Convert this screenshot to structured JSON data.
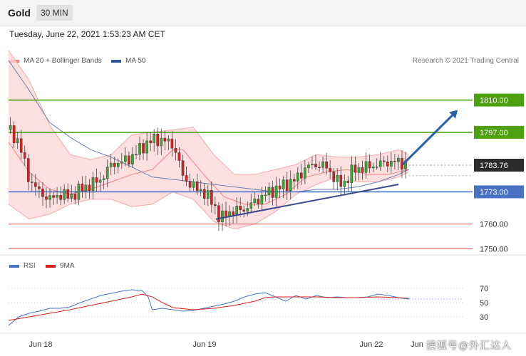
{
  "header": {
    "title": "Gold",
    "interval": "30 MIN"
  },
  "timestamp": "Tuesday, June 22, 2021 1:53:23 AM CET",
  "legend": {
    "bollinger": {
      "label": "MA 20 + Bollinger Bands",
      "color": "#f08080"
    },
    "ma50": {
      "label": "MA 50",
      "color": "#2f5597"
    },
    "credit": "Research © 2021 Trading Central"
  },
  "rsi_legend": {
    "rsi": {
      "label": "RSI",
      "color": "#4a72c4"
    },
    "ma9": {
      "label": "9MA",
      "color": "#d62020"
    }
  },
  "watermark": "搜狐号@外汇达人",
  "chart_data": [
    {
      "type": "line",
      "subtype": "candlestick",
      "x_ticks": [
        "Jun 18",
        "Jun 19",
        "Jun 22",
        "Jun"
      ],
      "y_ticks": [
        "1810.00",
        "1797.00",
        "1783.76",
        "1773.00",
        "1760.00",
        "1750.00"
      ],
      "ylim": [
        1747,
        1836
      ],
      "current_price": 1783.76,
      "levels": [
        {
          "value": 1810.0,
          "label": "1810.00",
          "color": "#4ea10e",
          "kind": "resistance"
        },
        {
          "value": 1797.0,
          "label": "1797.00",
          "color": "#4ea10e",
          "kind": "resistance"
        },
        {
          "value": 1773.0,
          "label": "1773.00",
          "color": "#4a72c4",
          "kind": "pivot"
        },
        {
          "value": 1760.0,
          "label": "1760.00",
          "color": "#e06060",
          "kind": "support"
        },
        {
          "value": 1750.0,
          "label": "1750.00",
          "color": "#e06060",
          "kind": "support"
        }
      ],
      "trendline": {
        "from": [
          101,
          1762
        ],
        "to": [
          190,
          1776
        ]
      },
      "arrow": {
        "from": [
          192,
          1784
        ],
        "to": [
          216,
          1806
        ]
      },
      "ma20": [
        [
          0,
          1793
        ],
        [
          10,
          1781
        ],
        [
          20,
          1774
        ],
        [
          30,
          1772
        ],
        [
          40,
          1774
        ],
        [
          50,
          1777
        ],
        [
          60,
          1780
        ],
        [
          70,
          1782
        ],
        [
          80,
          1790
        ],
        [
          85,
          1790
        ],
        [
          95,
          1780
        ],
        [
          105,
          1771
        ],
        [
          115,
          1768
        ],
        [
          125,
          1768
        ],
        [
          135,
          1772
        ],
        [
          145,
          1779
        ],
        [
          155,
          1781
        ],
        [
          165,
          1782
        ],
        [
          175,
          1780
        ],
        [
          185,
          1780
        ],
        [
          195,
          1782
        ]
      ],
      "bb_upper": [
        [
          0,
          1830
        ],
        [
          10,
          1818
        ],
        [
          20,
          1800
        ],
        [
          30,
          1788
        ],
        [
          40,
          1786
        ],
        [
          50,
          1788
        ],
        [
          60,
          1796
        ],
        [
          70,
          1797
        ],
        [
          80,
          1798
        ],
        [
          90,
          1799
        ],
        [
          100,
          1788
        ],
        [
          110,
          1780
        ],
        [
          120,
          1780
        ],
        [
          130,
          1782
        ],
        [
          140,
          1784
        ],
        [
          150,
          1788
        ],
        [
          160,
          1787
        ],
        [
          170,
          1787
        ],
        [
          180,
          1788
        ],
        [
          190,
          1790
        ],
        [
          195,
          1788
        ]
      ],
      "bb_lower": [
        [
          0,
          1768
        ],
        [
          10,
          1762
        ],
        [
          20,
          1764
        ],
        [
          30,
          1768
        ],
        [
          40,
          1770
        ],
        [
          50,
          1770
        ],
        [
          60,
          1767
        ],
        [
          70,
          1768
        ],
        [
          80,
          1773
        ],
        [
          90,
          1770
        ],
        [
          100,
          1761
        ],
        [
          110,
          1758
        ],
        [
          120,
          1760
        ],
        [
          130,
          1765
        ],
        [
          140,
          1772
        ],
        [
          150,
          1776
        ],
        [
          160,
          1779
        ],
        [
          170,
          1777
        ],
        [
          180,
          1777
        ],
        [
          190,
          1779
        ],
        [
          195,
          1781
        ]
      ],
      "ma50": [
        [
          0,
          1826
        ],
        [
          10,
          1814
        ],
        [
          20,
          1801
        ],
        [
          30,
          1795
        ],
        [
          40,
          1790
        ],
        [
          50,
          1787
        ],
        [
          60,
          1783
        ],
        [
          70,
          1779
        ],
        [
          80,
          1778
        ],
        [
          90,
          1777
        ],
        [
          100,
          1776
        ],
        [
          110,
          1775
        ],
        [
          120,
          1774
        ],
        [
          130,
          1773
        ],
        [
          140,
          1773
        ],
        [
          150,
          1774
        ],
        [
          160,
          1774
        ],
        [
          170,
          1775
        ],
        [
          180,
          1777
        ],
        [
          190,
          1780
        ],
        [
          195,
          1782
        ]
      ],
      "close": [
        [
          0,
          1798
        ],
        [
          5,
          1793
        ],
        [
          10,
          1778
        ],
        [
          15,
          1773
        ],
        [
          20,
          1770
        ],
        [
          25,
          1772
        ],
        [
          30,
          1771
        ],
        [
          35,
          1774
        ],
        [
          40,
          1776
        ],
        [
          45,
          1778
        ],
        [
          50,
          1784
        ],
        [
          55,
          1785
        ],
        [
          60,
          1787
        ],
        [
          65,
          1791
        ],
        [
          70,
          1794
        ],
        [
          75,
          1794
        ],
        [
          80,
          1792
        ],
        [
          82,
          1788
        ],
        [
          85,
          1779
        ],
        [
          90,
          1775
        ],
        [
          95,
          1773
        ],
        [
          100,
          1768
        ],
        [
          103,
          1762
        ],
        [
          108,
          1765
        ],
        [
          115,
          1766
        ],
        [
          120,
          1769
        ],
        [
          125,
          1772
        ],
        [
          130,
          1774
        ],
        [
          135,
          1776
        ],
        [
          140,
          1778
        ],
        [
          145,
          1783
        ],
        [
          150,
          1784
        ],
        [
          155,
          1783
        ],
        [
          160,
          1777
        ],
        [
          163,
          1776
        ],
        [
          168,
          1782
        ],
        [
          175,
          1783
        ],
        [
          180,
          1784
        ],
        [
          185,
          1785
        ],
        [
          190,
          1785
        ],
        [
          195,
          1784
        ]
      ]
    },
    {
      "type": "line",
      "title": "RSI",
      "y_ticks": [
        70,
        50,
        30
      ],
      "ylim": [
        10,
        90
      ],
      "series": [
        {
          "name": "RSI",
          "color": "#4a72c4",
          "values": [
            [
              0,
              18
            ],
            [
              5,
              30
            ],
            [
              10,
              35
            ],
            [
              15,
              38
            ],
            [
              20,
              42
            ],
            [
              25,
              42
            ],
            [
              30,
              44
            ],
            [
              35,
              50
            ],
            [
              40,
              55
            ],
            [
              45,
              60
            ],
            [
              50,
              63
            ],
            [
              55,
              66
            ],
            [
              60,
              68
            ],
            [
              65,
              67
            ],
            [
              68,
              58
            ],
            [
              70,
              40
            ],
            [
              75,
              42
            ],
            [
              80,
              40
            ],
            [
              85,
              38
            ],
            [
              90,
              39
            ],
            [
              95,
              42
            ],
            [
              100,
              45
            ],
            [
              105,
              48
            ],
            [
              110,
              52
            ],
            [
              115,
              58
            ],
            [
              120,
              62
            ],
            [
              125,
              64
            ],
            [
              130,
              58
            ],
            [
              135,
              52
            ],
            [
              140,
              60
            ],
            [
              145,
              55
            ],
            [
              150,
              60
            ],
            [
              155,
              57
            ],
            [
              160,
              58
            ],
            [
              165,
              57
            ],
            [
              170,
              57
            ],
            [
              175,
              58
            ],
            [
              180,
              62
            ],
            [
              185,
              60
            ],
            [
              190,
              57
            ],
            [
              195,
              55
            ]
          ]
        },
        {
          "name": "9MA",
          "color": "#d62020",
          "values": [
            [
              0,
              25
            ],
            [
              10,
              30
            ],
            [
              20,
              35
            ],
            [
              30,
              40
            ],
            [
              40,
              46
            ],
            [
              50,
              52
            ],
            [
              60,
              58
            ],
            [
              65,
              62
            ],
            [
              70,
              58
            ],
            [
              75,
              50
            ],
            [
              80,
              43
            ],
            [
              90,
              40
            ],
            [
              100,
              42
            ],
            [
              110,
              46
            ],
            [
              120,
              52
            ],
            [
              125,
              57
            ],
            [
              130,
              58
            ],
            [
              140,
              58
            ],
            [
              150,
              58
            ],
            [
              160,
              57
            ],
            [
              170,
              57
            ],
            [
              180,
              58
            ],
            [
              190,
              57
            ],
            [
              195,
              56
            ]
          ]
        }
      ]
    }
  ]
}
